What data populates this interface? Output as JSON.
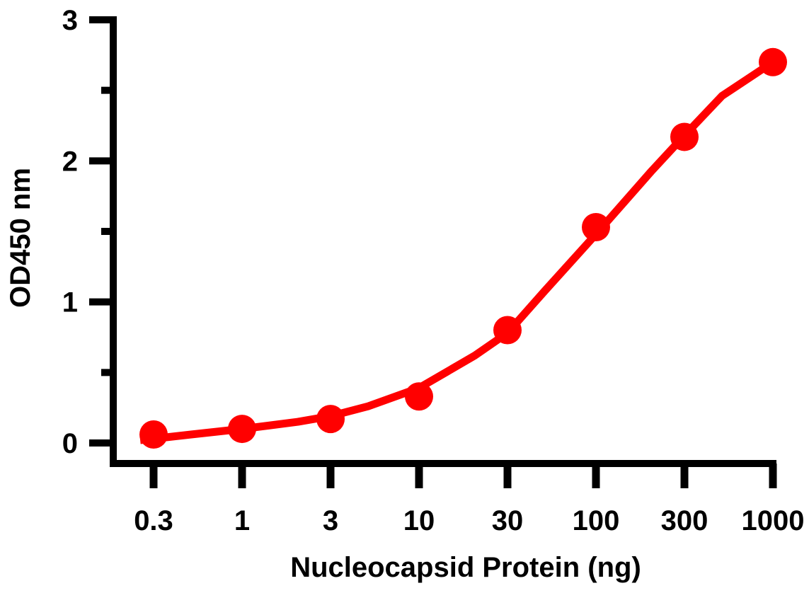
{
  "chart_data": {
    "type": "line",
    "title": "",
    "xlabel": "Nucleocapsid Protein (ng)",
    "ylabel": "OD450 nm",
    "x_scale": "log",
    "x_ticks": [
      "0.3",
      "1",
      "3",
      "10",
      "30",
      "100",
      "300",
      "1000"
    ],
    "y_ticks": [
      "0",
      "1",
      "2",
      "3"
    ],
    "ylim": [
      0,
      3
    ],
    "grid": false,
    "legend": "none",
    "color": "#ff0000",
    "series": [
      {
        "x": [
          0.3,
          1,
          3,
          10,
          30,
          100,
          300,
          1000
        ],
        "y": [
          0.06,
          0.1,
          0.17,
          0.33,
          0.8,
          1.53,
          2.17,
          2.7
        ]
      }
    ],
    "fit_curve": {
      "x": [
        0.25,
        0.3,
        0.5,
        1,
        2,
        3,
        5,
        10,
        20,
        30,
        50,
        100,
        200,
        300,
        500,
        1000
      ],
      "y": [
        0.02,
        0.03,
        0.06,
        0.1,
        0.15,
        0.19,
        0.26,
        0.39,
        0.62,
        0.78,
        1.08,
        1.48,
        1.93,
        2.18,
        2.46,
        2.7
      ]
    }
  }
}
